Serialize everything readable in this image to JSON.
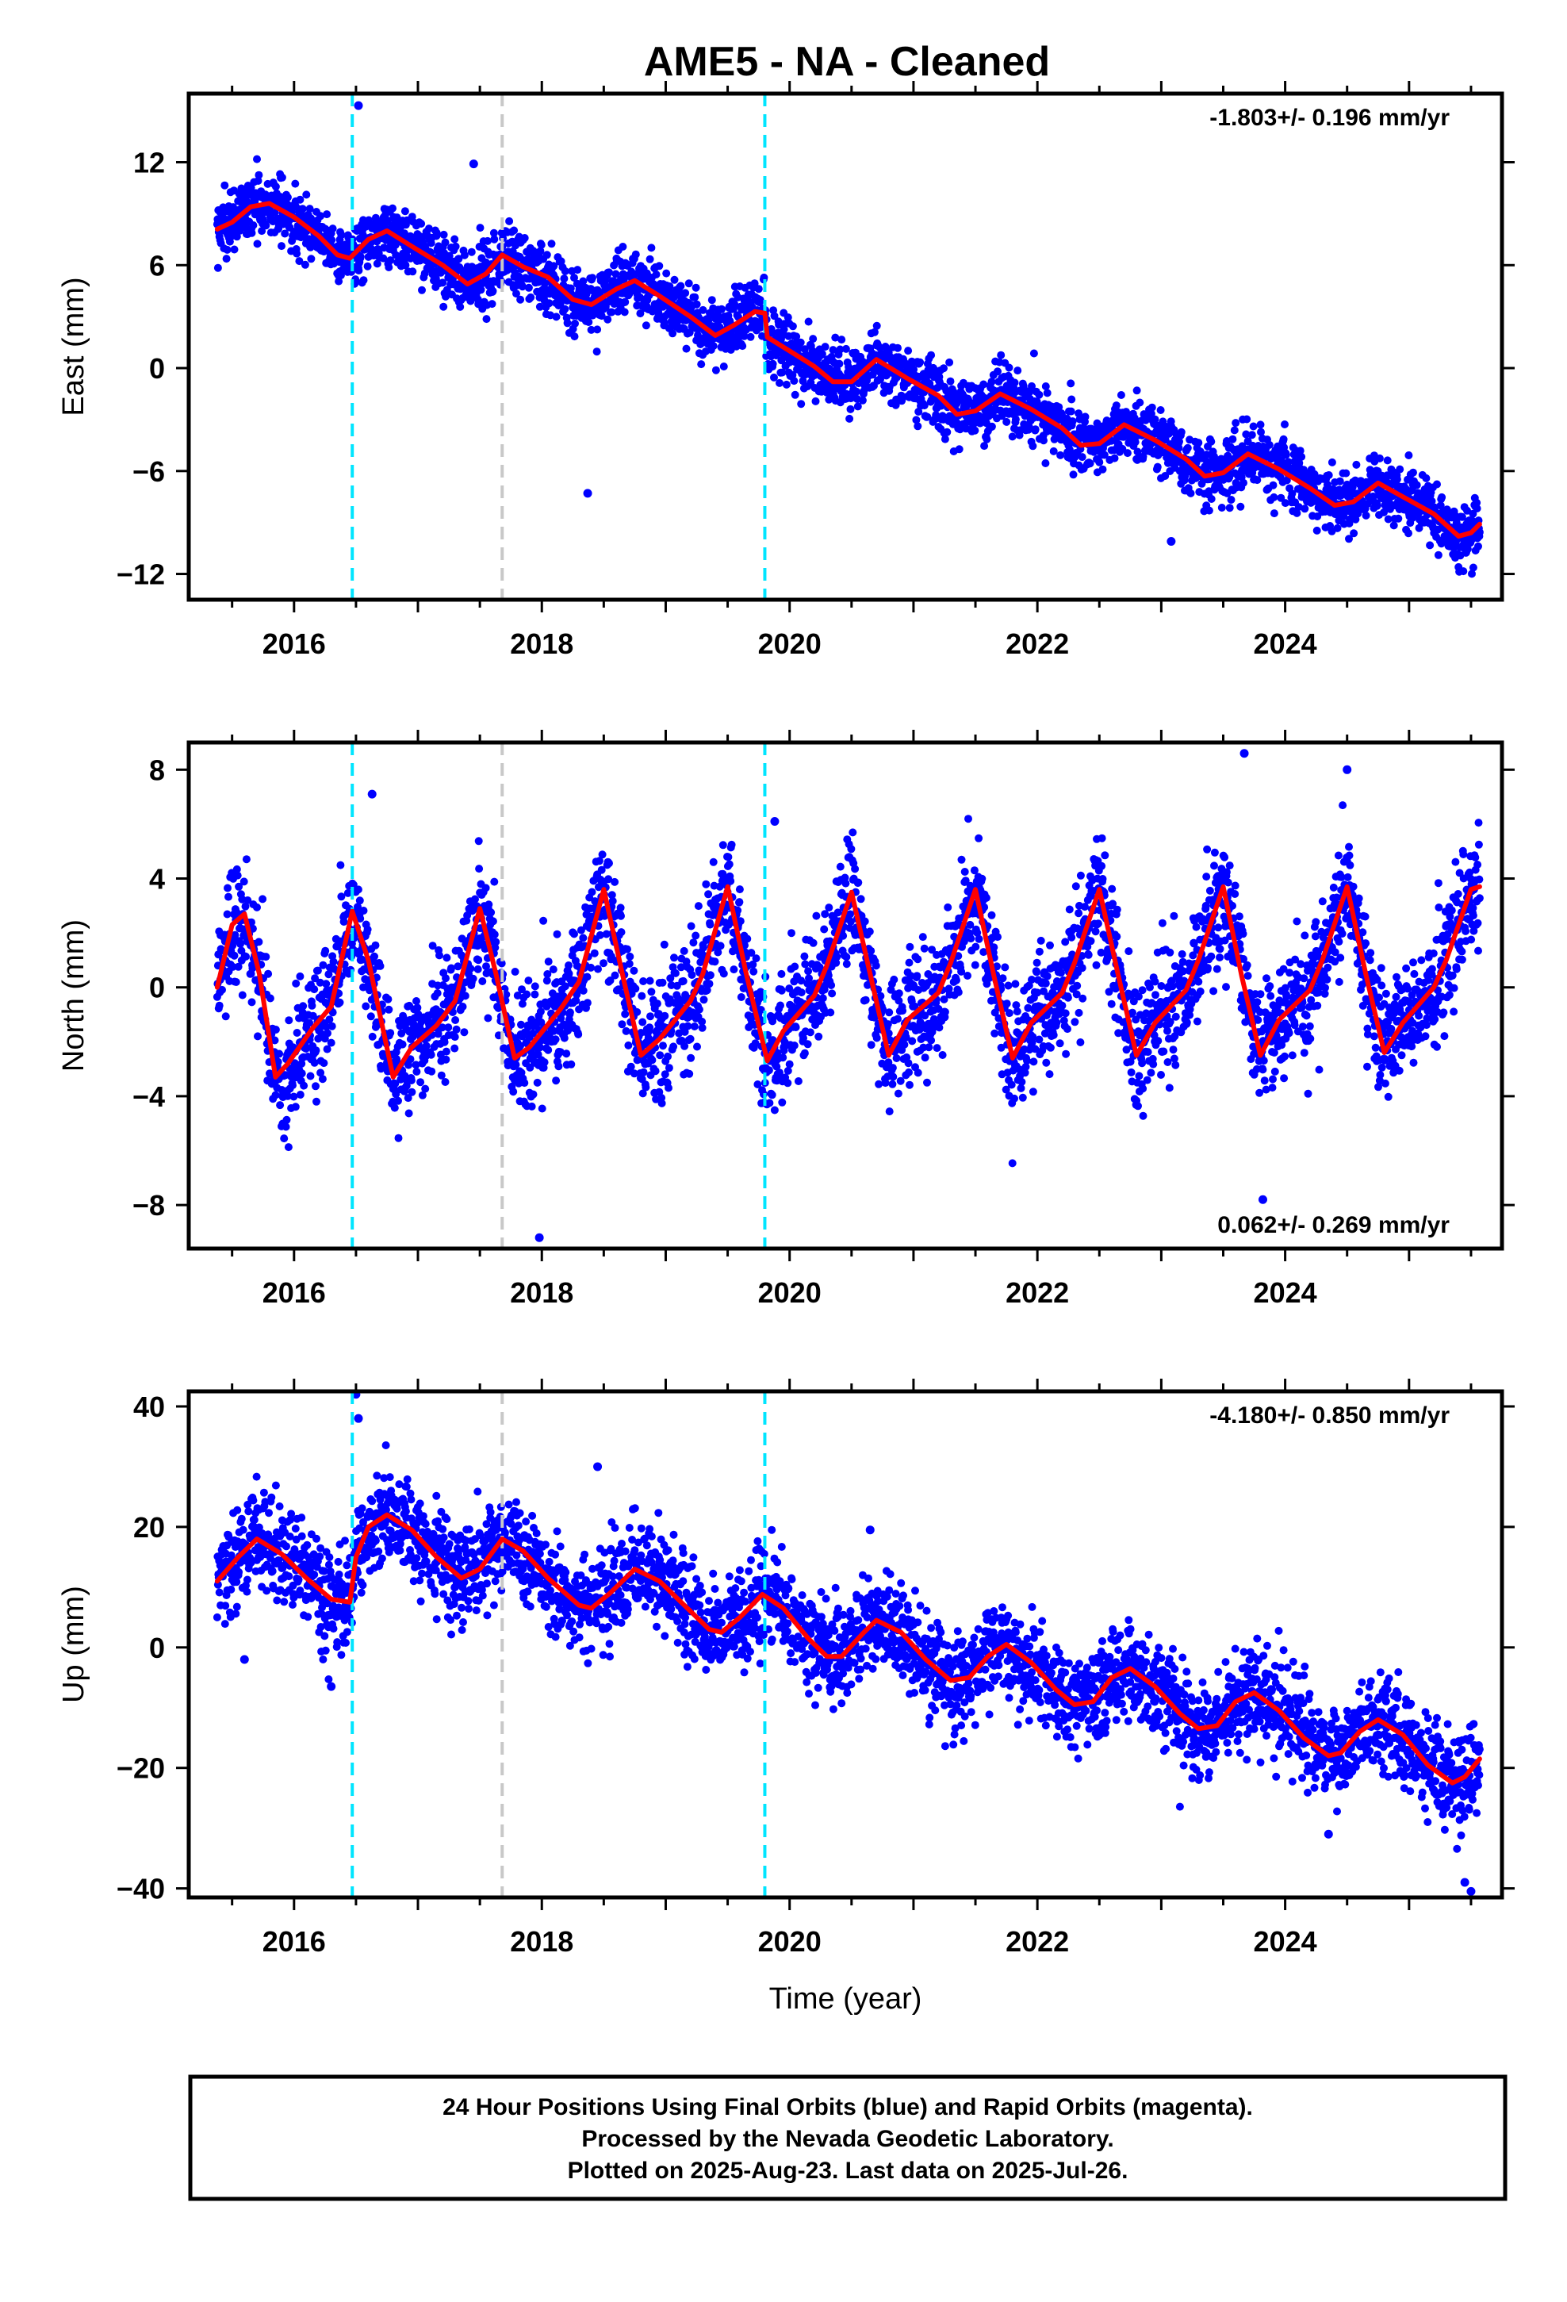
{
  "page": {
    "title": "AME5  - NA - Cleaned",
    "footer": [
      "24 Hour Positions Using Final Orbits (blue) and Rapid Orbits (magenta).",
      "Processed by the Nevada Geodetic Laboratory.",
      "Plotted on 2025-Aug-23. Last data on 2025-Jul-26."
    ]
  },
  "colors": {
    "data_points": "#0000ff",
    "model_curve": "#ff0000",
    "equipment_change": "#00e5ff",
    "other_event": "#c8c8c8"
  },
  "chart_data": [
    {
      "type": "scatter",
      "component": "east",
      "ylabel": "East (mm)",
      "xlabel": "",
      "xlim": [
        2015.15,
        2025.75
      ],
      "ylim": [
        -13.5,
        16
      ],
      "xticks": [
        2016,
        2018,
        2020,
        2022,
        2024
      ],
      "yticks": [
        -12,
        -6,
        0,
        6,
        12
      ],
      "rate_text": "-1.803+/- 0.196 mm/yr",
      "rate_position": "top-right",
      "event_lines": [
        {
          "x": 2016.47,
          "kind": "equipment_change"
        },
        {
          "x": 2017.68,
          "kind": "other_event"
        },
        {
          "x": 2019.8,
          "kind": "equipment_change"
        }
      ],
      "model": {
        "description": "trend + seasonal fit",
        "rate": -1.803,
        "points": [
          [
            2015.38,
            8.1
          ],
          [
            2015.5,
            8.5
          ],
          [
            2015.65,
            9.4
          ],
          [
            2015.8,
            9.6
          ],
          [
            2016.0,
            8.8
          ],
          [
            2016.2,
            7.7
          ],
          [
            2016.35,
            6.6
          ],
          [
            2016.45,
            6.4
          ],
          [
            2016.6,
            7.5
          ],
          [
            2016.75,
            8.0
          ],
          [
            2016.95,
            7.1
          ],
          [
            2017.2,
            6.0
          ],
          [
            2017.4,
            4.9
          ],
          [
            2017.55,
            5.5
          ],
          [
            2017.68,
            6.6
          ],
          [
            2017.85,
            5.9
          ],
          [
            2018.05,
            5.3
          ],
          [
            2018.25,
            4.0
          ],
          [
            2018.4,
            3.7
          ],
          [
            2018.6,
            4.6
          ],
          [
            2018.75,
            5.1
          ],
          [
            2018.95,
            4.2
          ],
          [
            2019.2,
            3.0
          ],
          [
            2019.4,
            1.9
          ],
          [
            2019.55,
            2.5
          ],
          [
            2019.72,
            3.3
          ],
          [
            2019.8,
            3.2
          ],
          [
            2019.82,
            1.8
          ],
          [
            2020.0,
            1.0
          ],
          [
            2020.2,
            0.1
          ],
          [
            2020.35,
            -0.8
          ],
          [
            2020.5,
            -0.8
          ],
          [
            2020.7,
            0.5
          ],
          [
            2020.95,
            -0.6
          ],
          [
            2021.2,
            -1.6
          ],
          [
            2021.35,
            -2.7
          ],
          [
            2021.5,
            -2.5
          ],
          [
            2021.7,
            -1.5
          ],
          [
            2021.95,
            -2.4
          ],
          [
            2022.2,
            -3.5
          ],
          [
            2022.35,
            -4.5
          ],
          [
            2022.5,
            -4.4
          ],
          [
            2022.7,
            -3.3
          ],
          [
            2022.95,
            -4.2
          ],
          [
            2023.2,
            -5.3
          ],
          [
            2023.35,
            -6.3
          ],
          [
            2023.5,
            -6.1
          ],
          [
            2023.7,
            -5.0
          ],
          [
            2023.95,
            -5.9
          ],
          [
            2024.2,
            -7.0
          ],
          [
            2024.4,
            -8.0
          ],
          [
            2024.55,
            -7.8
          ],
          [
            2024.75,
            -6.7
          ],
          [
            2024.95,
            -7.5
          ],
          [
            2025.2,
            -8.5
          ],
          [
            2025.4,
            -9.8
          ],
          [
            2025.5,
            -9.6
          ],
          [
            2025.57,
            -9.1
          ]
        ]
      },
      "observations": {
        "count": 3400,
        "t_start": 2015.38,
        "t_end": 2025.57,
        "scatter_sd": 0.9,
        "outliers": [
          [
            2016.52,
            15.3
          ],
          [
            2018.37,
            -7.3
          ],
          [
            2017.45,
            11.9
          ],
          [
            2023.08,
            -10.1
          ]
        ]
      }
    },
    {
      "type": "scatter",
      "component": "north",
      "ylabel": "North (mm)",
      "xlabel": "",
      "xlim": [
        2015.15,
        2025.75
      ],
      "ylim": [
        -9.6,
        9
      ],
      "xticks": [
        2016,
        2018,
        2020,
        2022,
        2024
      ],
      "yticks": [
        -8,
        -4,
        0,
        4,
        8
      ],
      "rate_text": "0.062+/- 0.269 mm/yr",
      "rate_position": "bottom-right",
      "event_lines": [
        {
          "x": 2016.47,
          "kind": "equipment_change"
        },
        {
          "x": 2017.68,
          "kind": "other_event"
        },
        {
          "x": 2019.8,
          "kind": "equipment_change"
        }
      ],
      "model": {
        "description": "seasonal fit",
        "rate": 0.062,
        "points": [
          [
            2015.38,
            0.0
          ],
          [
            2015.5,
            2.3
          ],
          [
            2015.6,
            2.7
          ],
          [
            2015.72,
            0.5
          ],
          [
            2015.85,
            -3.3
          ],
          [
            2015.95,
            -2.8
          ],
          [
            2016.15,
            -1.5
          ],
          [
            2016.3,
            -0.7
          ],
          [
            2016.47,
            2.8
          ],
          [
            2016.6,
            1.0
          ],
          [
            2016.8,
            -3.3
          ],
          [
            2016.95,
            -2.2
          ],
          [
            2017.15,
            -1.4
          ],
          [
            2017.3,
            -0.5
          ],
          [
            2017.5,
            2.9
          ],
          [
            2017.63,
            0.5
          ],
          [
            2017.78,
            -2.6
          ],
          [
            2017.9,
            -2.2
          ],
          [
            2018.15,
            -0.8
          ],
          [
            2018.3,
            0.2
          ],
          [
            2018.5,
            3.6
          ],
          [
            2018.65,
            0.5
          ],
          [
            2018.8,
            -2.5
          ],
          [
            2018.95,
            -1.9
          ],
          [
            2019.2,
            -0.5
          ],
          [
            2019.3,
            0.5
          ],
          [
            2019.5,
            3.7
          ],
          [
            2019.65,
            0.5
          ],
          [
            2019.82,
            -2.7
          ],
          [
            2019.95,
            -1.6
          ],
          [
            2020.2,
            -0.3
          ],
          [
            2020.3,
            0.8
          ],
          [
            2020.5,
            3.5
          ],
          [
            2020.65,
            0.5
          ],
          [
            2020.8,
            -2.5
          ],
          [
            2020.95,
            -1.2
          ],
          [
            2021.2,
            -0.2
          ],
          [
            2021.3,
            0.9
          ],
          [
            2021.5,
            3.6
          ],
          [
            2021.65,
            0.4
          ],
          [
            2021.8,
            -2.6
          ],
          [
            2021.95,
            -1.3
          ],
          [
            2022.2,
            -0.2
          ],
          [
            2022.3,
            0.9
          ],
          [
            2022.5,
            3.6
          ],
          [
            2022.65,
            0.5
          ],
          [
            2022.8,
            -2.5
          ],
          [
            2022.95,
            -1.3
          ],
          [
            2023.2,
            -0.1
          ],
          [
            2023.3,
            1.0
          ],
          [
            2023.5,
            3.7
          ],
          [
            2023.65,
            0.4
          ],
          [
            2023.8,
            -2.5
          ],
          [
            2023.95,
            -1.2
          ],
          [
            2024.2,
            -0.1
          ],
          [
            2024.3,
            1.0
          ],
          [
            2024.5,
            3.7
          ],
          [
            2024.65,
            0.5
          ],
          [
            2024.8,
            -2.4
          ],
          [
            2024.95,
            -1.3
          ],
          [
            2025.2,
            0.0
          ],
          [
            2025.3,
            1.0
          ],
          [
            2025.5,
            3.6
          ],
          [
            2025.57,
            3.7
          ]
        ]
      },
      "observations": {
        "count": 3400,
        "t_start": 2015.38,
        "t_end": 2025.57,
        "scatter_sd": 1.1,
        "outliers": [
          [
            2016.63,
            7.1
          ],
          [
            2019.88,
            6.1
          ],
          [
            2023.67,
            8.6
          ],
          [
            2024.5,
            8.0
          ],
          [
            2017.98,
            -9.2
          ],
          [
            2023.82,
            -7.8
          ]
        ]
      }
    },
    {
      "type": "scatter",
      "component": "up",
      "ylabel": "Up (mm)",
      "xlabel": "Time (year)",
      "xlim": [
        2015.15,
        2025.75
      ],
      "ylim": [
        -41.5,
        42.5
      ],
      "xticks": [
        2016,
        2018,
        2020,
        2022,
        2024
      ],
      "yticks": [
        -40,
        -20,
        0,
        20,
        40
      ],
      "rate_text": "-4.180+/- 0.850 mm/yr",
      "rate_position": "top-right",
      "event_lines": [
        {
          "x": 2016.47,
          "kind": "equipment_change"
        },
        {
          "x": 2017.68,
          "kind": "other_event"
        },
        {
          "x": 2019.8,
          "kind": "equipment_change"
        }
      ],
      "model": {
        "description": "trend + seasonal fit",
        "rate": -4.18,
        "points": [
          [
            2015.38,
            11.0
          ],
          [
            2015.55,
            15.0
          ],
          [
            2015.7,
            18.0
          ],
          [
            2015.9,
            15.5
          ],
          [
            2016.1,
            11.5
          ],
          [
            2016.3,
            8.0
          ],
          [
            2016.45,
            7.5
          ],
          [
            2016.5,
            15.0
          ],
          [
            2016.6,
            20.0
          ],
          [
            2016.75,
            22.0
          ],
          [
            2016.95,
            19.5
          ],
          [
            2017.15,
            15.0
          ],
          [
            2017.35,
            11.5
          ],
          [
            2017.5,
            13.0
          ],
          [
            2017.68,
            18.0
          ],
          [
            2017.85,
            16.0
          ],
          [
            2018.05,
            11.5
          ],
          [
            2018.3,
            7.0
          ],
          [
            2018.4,
            6.5
          ],
          [
            2018.55,
            9.0
          ],
          [
            2018.75,
            13.0
          ],
          [
            2018.95,
            11.0
          ],
          [
            2019.15,
            7.0
          ],
          [
            2019.35,
            3.0
          ],
          [
            2019.45,
            2.5
          ],
          [
            2019.6,
            5.0
          ],
          [
            2019.78,
            8.8
          ],
          [
            2019.95,
            6.5
          ],
          [
            2020.15,
            1.5
          ],
          [
            2020.3,
            -1.5
          ],
          [
            2020.42,
            -1.5
          ],
          [
            2020.6,
            2.5
          ],
          [
            2020.7,
            4.5
          ],
          [
            2020.9,
            2.5
          ],
          [
            2021.1,
            -2.0
          ],
          [
            2021.3,
            -5.5
          ],
          [
            2021.45,
            -5.0
          ],
          [
            2021.6,
            -1.5
          ],
          [
            2021.75,
            0.5
          ],
          [
            2021.95,
            -2.5
          ],
          [
            2022.15,
            -7.0
          ],
          [
            2022.3,
            -9.5
          ],
          [
            2022.45,
            -9.0
          ],
          [
            2022.6,
            -5.0
          ],
          [
            2022.75,
            -3.5
          ],
          [
            2022.95,
            -6.5
          ],
          [
            2023.15,
            -11.0
          ],
          [
            2023.3,
            -13.5
          ],
          [
            2023.45,
            -13.0
          ],
          [
            2023.6,
            -9.0
          ],
          [
            2023.75,
            -7.5
          ],
          [
            2023.95,
            -10.5
          ],
          [
            2024.15,
            -15.0
          ],
          [
            2024.35,
            -18.0
          ],
          [
            2024.45,
            -17.5
          ],
          [
            2024.6,
            -14.0
          ],
          [
            2024.75,
            -12.0
          ],
          [
            2024.95,
            -14.5
          ],
          [
            2025.15,
            -19.5
          ],
          [
            2025.35,
            -22.5
          ],
          [
            2025.45,
            -21.5
          ],
          [
            2025.57,
            -18.5
          ]
        ]
      },
      "observations": {
        "count": 3400,
        "t_start": 2015.38,
        "t_end": 2025.57,
        "scatter_sd": 4.0,
        "outliers": [
          [
            2016.5,
            42.0
          ],
          [
            2016.52,
            38.0
          ],
          [
            2018.45,
            30.0
          ],
          [
            2020.65,
            19.5
          ],
          [
            2015.6,
            -2.0
          ],
          [
            2016.3,
            -6.5
          ],
          [
            2024.35,
            -31.0
          ],
          [
            2025.45,
            -39.0
          ],
          [
            2025.5,
            -40.5
          ]
        ]
      }
    }
  ]
}
